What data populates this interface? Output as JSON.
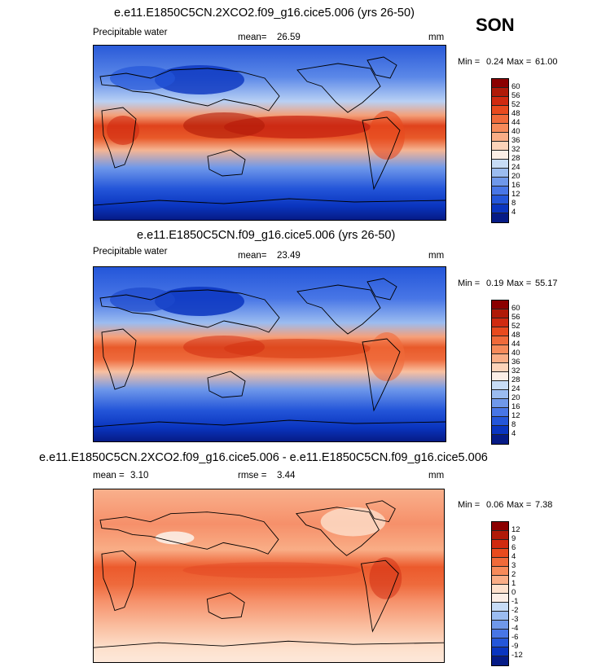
{
  "season": "SON",
  "panels": [
    {
      "title": "e.e11.E1850C5CN.2XCO2.f09_g16.cice5.006 (yrs 26-50)",
      "variable": "Precipitable water",
      "stat1_label": "mean=",
      "stat1_value": "26.59",
      "stat2_label": "",
      "stat2_value": "",
      "units": "mm",
      "min_label": "Min =",
      "min_value": "0.24",
      "max_label": "Max =",
      "max_value": "61.00",
      "colorbar_labels": [
        "60",
        "56",
        "52",
        "48",
        "44",
        "40",
        "36",
        "32",
        "28",
        "24",
        "20",
        "16",
        "12",
        "8",
        "4"
      ],
      "colorbar_colors": [
        "#8b0000",
        "#b01a08",
        "#d02a10",
        "#e84a1e",
        "#f06a3a",
        "#f68a5a",
        "#f9ad86",
        "#fcd3b9",
        "#fbeee6",
        "#c7dcf6",
        "#9bbcf0",
        "#6f98ea",
        "#4876e6",
        "#2456d9",
        "#0a35bf",
        "#061b86"
      ]
    },
    {
      "title": "e.e11.E1850C5CN.f09_g16.cice5.006 (yrs 26-50)",
      "variable": "Precipitable water",
      "stat1_label": "mean=",
      "stat1_value": "23.49",
      "stat2_label": "",
      "stat2_value": "",
      "units": "mm",
      "min_label": "Min =",
      "min_value": "0.19",
      "max_label": "Max =",
      "max_value": "55.17",
      "colorbar_labels": [
        "60",
        "56",
        "52",
        "48",
        "44",
        "40",
        "36",
        "32",
        "28",
        "24",
        "20",
        "16",
        "12",
        "8",
        "4"
      ],
      "colorbar_colors": [
        "#8b0000",
        "#b01a08",
        "#d02a10",
        "#e84a1e",
        "#f06a3a",
        "#f68a5a",
        "#f9ad86",
        "#fcd3b9",
        "#fbeee6",
        "#c7dcf6",
        "#9bbcf0",
        "#6f98ea",
        "#4876e6",
        "#2456d9",
        "#0a35bf",
        "#061b86"
      ]
    },
    {
      "title": "e.e11.E1850C5CN.2XCO2.f09_g16.cice5.006 - e.e11.E1850C5CN.f09_g16.cice5.006",
      "variable": "",
      "stat1_label": "mean =",
      "stat1_value": "3.10",
      "stat2_label": "rmse =",
      "stat2_value": "3.44",
      "units": "mm",
      "min_label": "Min =",
      "min_value": "0.06",
      "max_label": "Max =",
      "max_value": "7.38",
      "colorbar_labels": [
        "12",
        "9",
        "6",
        "4",
        "3",
        "2",
        "1",
        "0",
        "-1",
        "-2",
        "-3",
        "-4",
        "-6",
        "-9",
        "-12"
      ],
      "colorbar_colors": [
        "#8b0000",
        "#b01a08",
        "#d02a10",
        "#e84a1e",
        "#f06a3a",
        "#f68a5a",
        "#f9ad86",
        "#fde0cc",
        "#fbeee6",
        "#c7dcf6",
        "#9bbcf0",
        "#6f98ea",
        "#4876e6",
        "#2456d9",
        "#0a35bf",
        "#061b86"
      ]
    }
  ]
}
